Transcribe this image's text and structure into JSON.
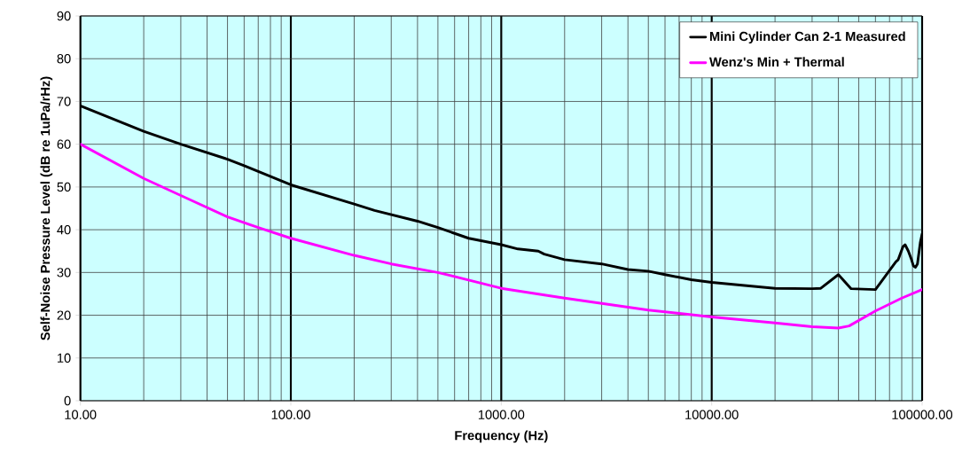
{
  "chart_data": {
    "type": "line",
    "xlabel": "Frequency (Hz)",
    "ylabel": "Self-Noise Pressure Level (dB re 1uPa/rHz)",
    "log": "x",
    "grid": true,
    "legend": "top right",
    "xlim": [
      10,
      100000
    ],
    "ylim": [
      0,
      90
    ],
    "xticks": [
      {
        "value": 10,
        "label": "10.00"
      },
      {
        "value": 100,
        "label": "100.00"
      },
      {
        "value": 1000,
        "label": "1000.00"
      },
      {
        "value": 10000,
        "label": "10000.00"
      },
      {
        "value": 100000,
        "label": "100000.00"
      }
    ],
    "yticks": [
      0,
      10,
      20,
      30,
      40,
      50,
      60,
      70,
      80,
      90
    ],
    "series": [
      {
        "name": "Mini Cylinder Can 2-1 Measured",
        "color": "#000000",
        "x": [
          10,
          20,
          30,
          50,
          60,
          100,
          200,
          250,
          400,
          500,
          700,
          1000,
          1200,
          1500,
          1600,
          2000,
          3000,
          4000,
          5000,
          6000,
          8000,
          10000,
          20000,
          30000,
          33000,
          40000,
          46000,
          60000,
          75000,
          77000,
          81000,
          83000,
          86000,
          89000,
          91000,
          93000,
          95000,
          98000,
          100000
        ],
        "values": [
          69,
          63,
          60,
          56.5,
          55,
          50.5,
          46,
          44.5,
          42,
          40.5,
          38,
          36.5,
          35.5,
          35,
          34.3,
          33,
          32,
          30.7,
          30.3,
          29.5,
          28.3,
          27.7,
          26.3,
          26.2,
          26.3,
          29.5,
          26.2,
          26,
          32.5,
          33,
          36,
          36.5,
          35,
          33,
          31.5,
          31.2,
          32,
          37,
          39
        ]
      },
      {
        "name": "Wenz's Min + Thermal",
        "color": "#ff00ff",
        "x": [
          10,
          20,
          30,
          50,
          70,
          100,
          200,
          300,
          500,
          1000,
          2000,
          5000,
          10000,
          20000,
          30000,
          40000,
          45000,
          60000,
          80000,
          100000
        ],
        "values": [
          60,
          52,
          48,
          43,
          40.5,
          38,
          34,
          32,
          30,
          26.3,
          24,
          21.2,
          19.6,
          18.2,
          17.3,
          17,
          17.5,
          21,
          24,
          26
        ]
      }
    ]
  }
}
